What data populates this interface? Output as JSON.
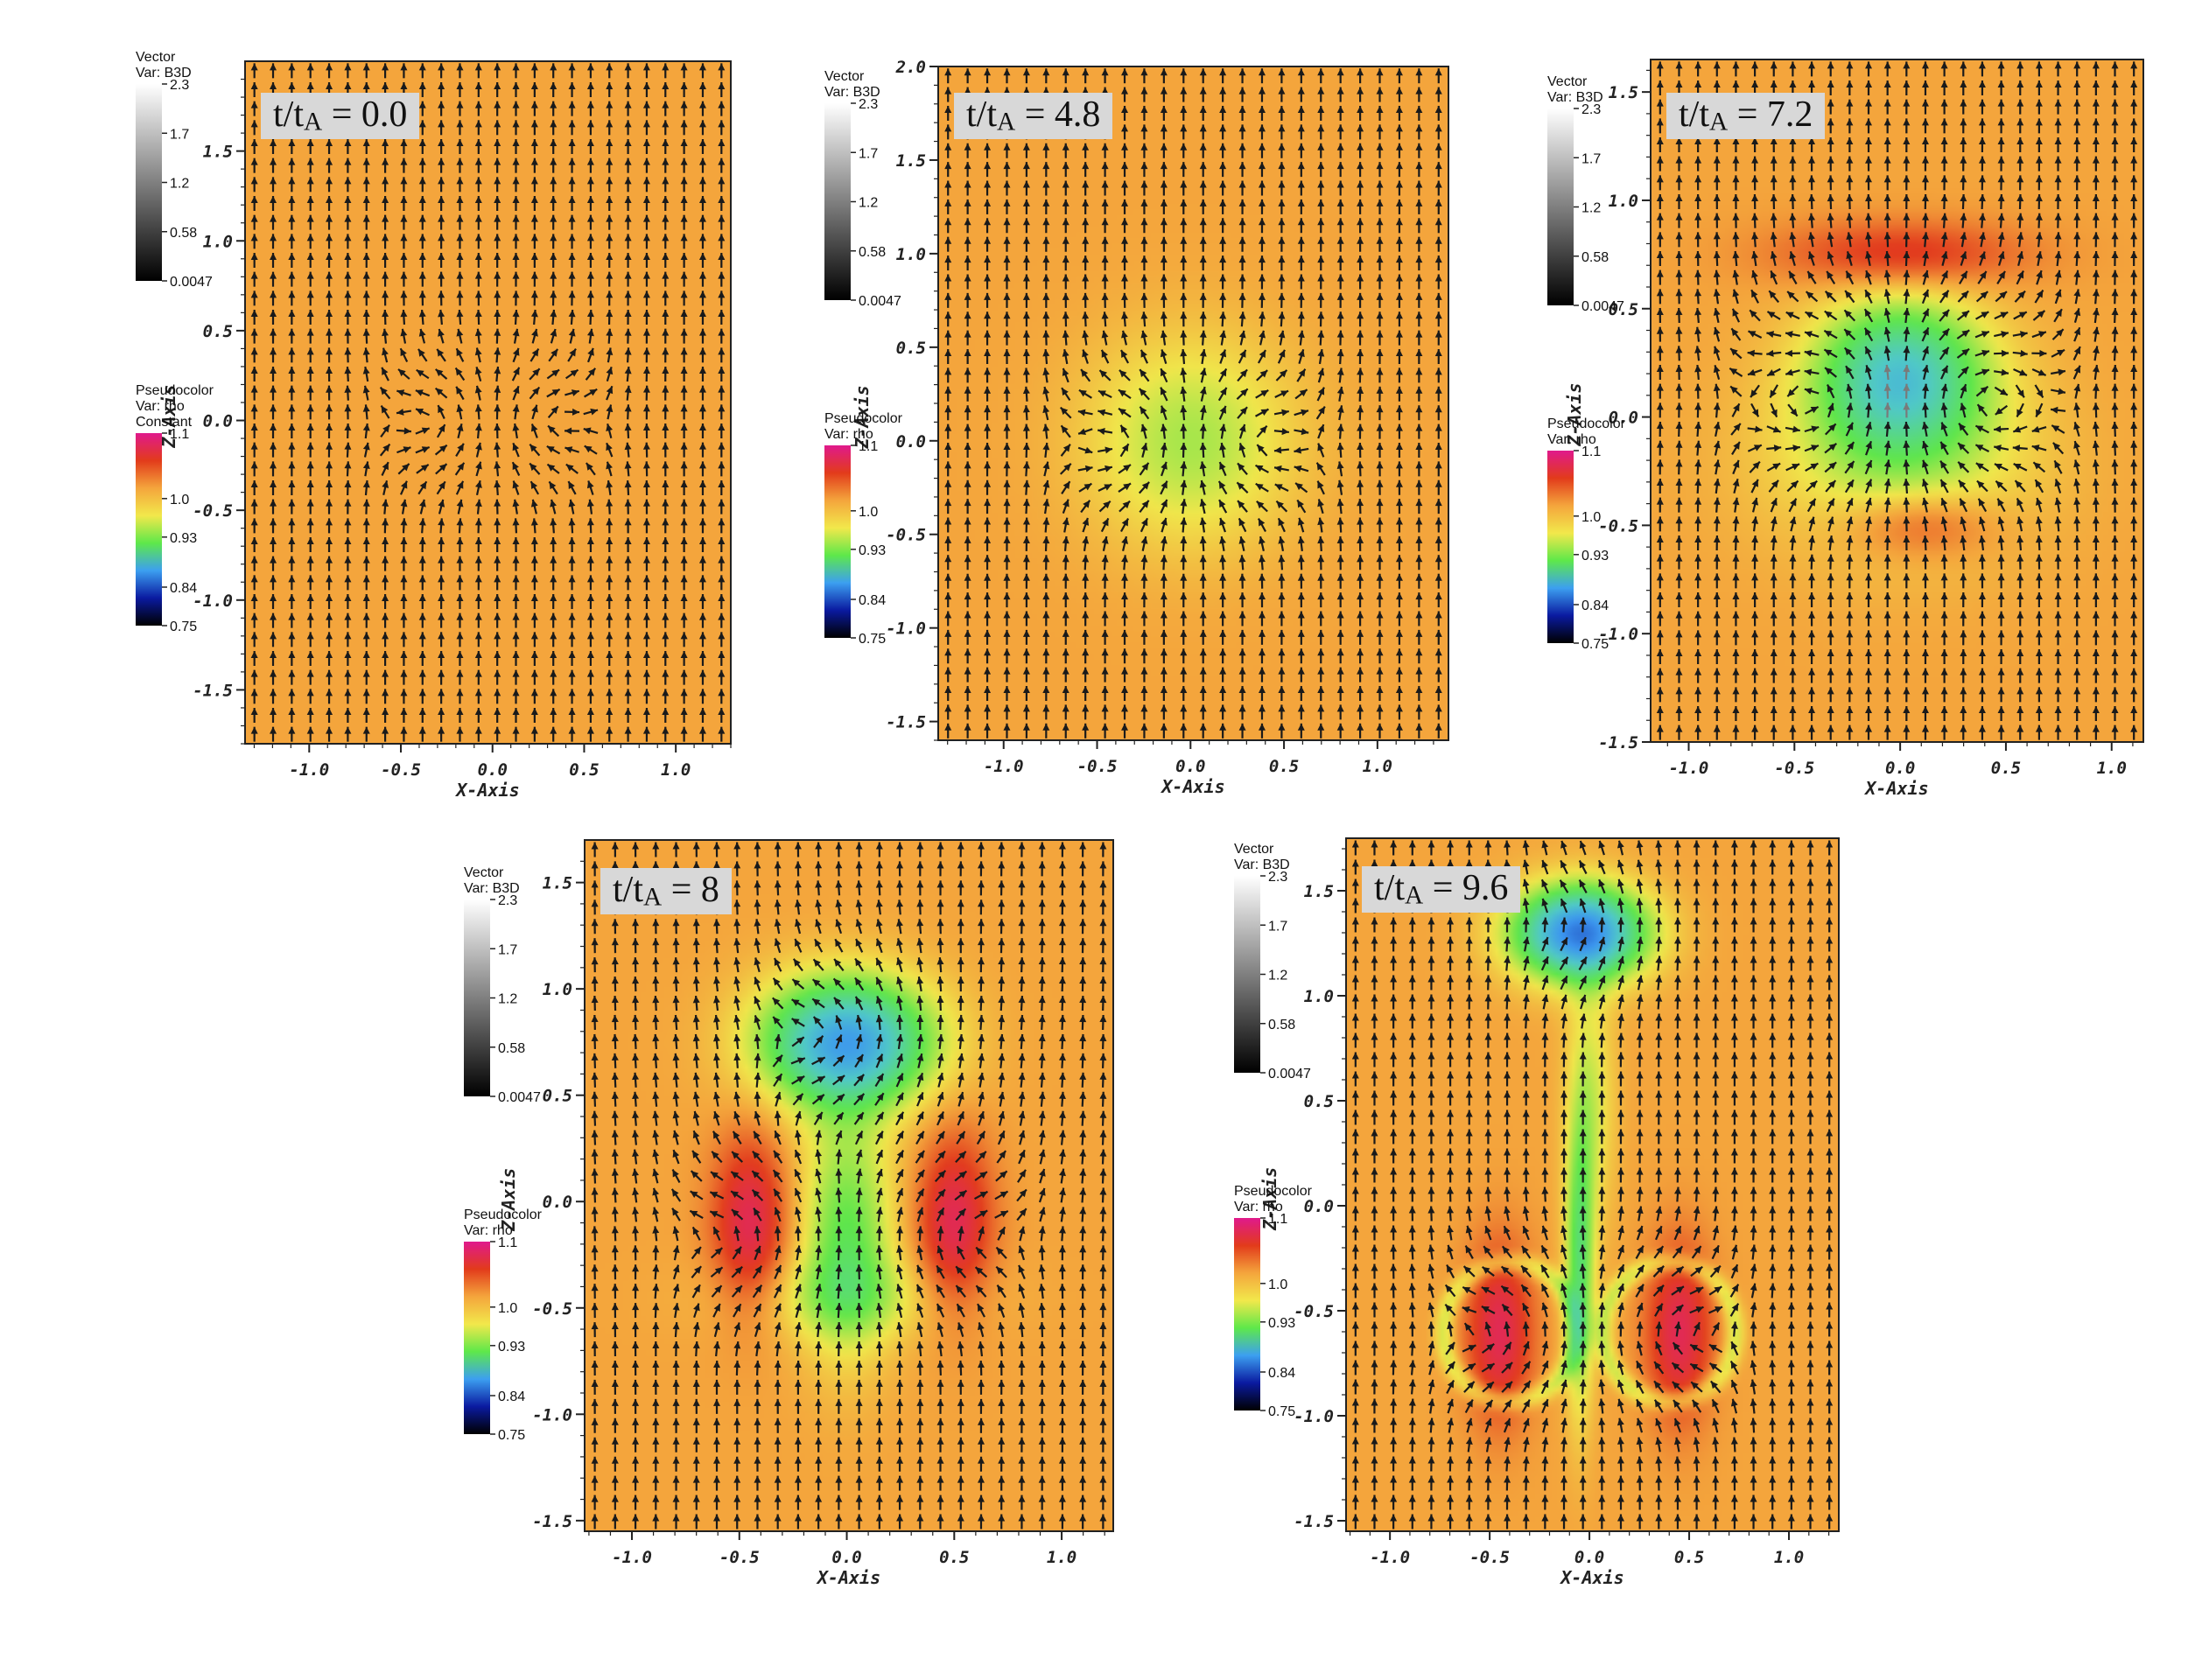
{
  "legend": {
    "vector_title": "Vector",
    "vector_var": "Var: B3D",
    "vector_ticks": [
      "2.3",
      "1.7",
      "1.2",
      "0.58",
      "0.0047"
    ],
    "pseudo_title": "Pseudocolor",
    "pseudo_var": "Var: rho",
    "pseudo_constant": "Constant",
    "pseudo_ticks": [
      "1.1",
      "1.0",
      "0.93",
      "0.84",
      "0.75"
    ]
  },
  "colors": {
    "background_rho": "#f4a53c",
    "arrow": "#1a1a1a",
    "pseudocolor_scale": [
      "#e0198c",
      "#e23b1b",
      "#f4a53c",
      "#f2e84b",
      "#5ee84a",
      "#3c9ff0",
      "#0a1aa0",
      "#000000"
    ]
  },
  "chart_data": [
    {
      "type": "vector-field",
      "time_var": "t",
      "time_sub": "A",
      "time": "0.0",
      "xlabel": "X-Axis",
      "ylabel": "Z-Axis",
      "xlim": [
        -1.35,
        1.3
      ],
      "ylim": [
        -1.8,
        2.0
      ],
      "xticks": [
        "-1.0",
        "-0.5",
        "0.0",
        "0.5",
        "1.0"
      ],
      "yticks": [
        "1.5",
        "1.0",
        "0.5",
        "0.0",
        "-0.5",
        "-1.0",
        "-1.5"
      ],
      "pseudo_constant": true
    },
    {
      "type": "vector-field",
      "time_var": "t",
      "time_sub": "A",
      "time": "4.8",
      "xlabel": "X-Axis",
      "ylabel": "Z-Axis",
      "xlim": [
        -1.35,
        1.38
      ],
      "ylim": [
        -1.6,
        2.0
      ],
      "xticks": [
        "-1.0",
        "-0.5",
        "0.0",
        "0.5",
        "1.0"
      ],
      "yticks": [
        "2.0",
        "1.5",
        "1.0",
        "0.5",
        "0.0",
        "-0.5",
        "-1.0",
        "-1.5"
      ],
      "pseudo_constant": false
    },
    {
      "type": "vector-field",
      "time_var": "t",
      "time_sub": "A",
      "time": "7.2",
      "xlabel": "X-Axis",
      "ylabel": "Z-Axis",
      "xlim": [
        -1.18,
        1.15
      ],
      "ylim": [
        -1.5,
        1.65
      ],
      "xticks": [
        "-1.0",
        "-0.5",
        "0.0",
        "0.5",
        "1.0"
      ],
      "yticks": [
        "1.5",
        "1.0",
        "0.5",
        "0.0",
        "-0.5",
        "-1.0",
        "-1.5"
      ],
      "pseudo_constant": false
    },
    {
      "type": "vector-field",
      "time_var": "t",
      "time_sub": "A",
      "time": "8",
      "xlabel": "X-Axis",
      "ylabel": "Z-Axis",
      "xlim": [
        -1.22,
        1.24
      ],
      "ylim": [
        -1.55,
        1.7
      ],
      "xticks": [
        "-1.0",
        "-0.5",
        "0.0",
        "0.5",
        "1.0"
      ],
      "yticks": [
        "1.5",
        "1.0",
        "0.5",
        "0.0",
        "-0.5",
        "-1.0",
        "-1.5"
      ],
      "pseudo_constant": false
    },
    {
      "type": "vector-field",
      "time_var": "t",
      "time_sub": "A",
      "time": "9.6",
      "xlabel": "X-Axis",
      "ylabel": "Z-Axis",
      "xlim": [
        -1.22,
        1.25
      ],
      "ylim": [
        -1.55,
        1.75
      ],
      "xticks": [
        "-1.0",
        "-0.5",
        "0.0",
        "0.5",
        "1.0"
      ],
      "yticks": [
        "1.5",
        "1.0",
        "0.5",
        "0.0",
        "-0.5",
        "-1.0",
        "-1.5"
      ],
      "pseudo_constant": false
    }
  ]
}
